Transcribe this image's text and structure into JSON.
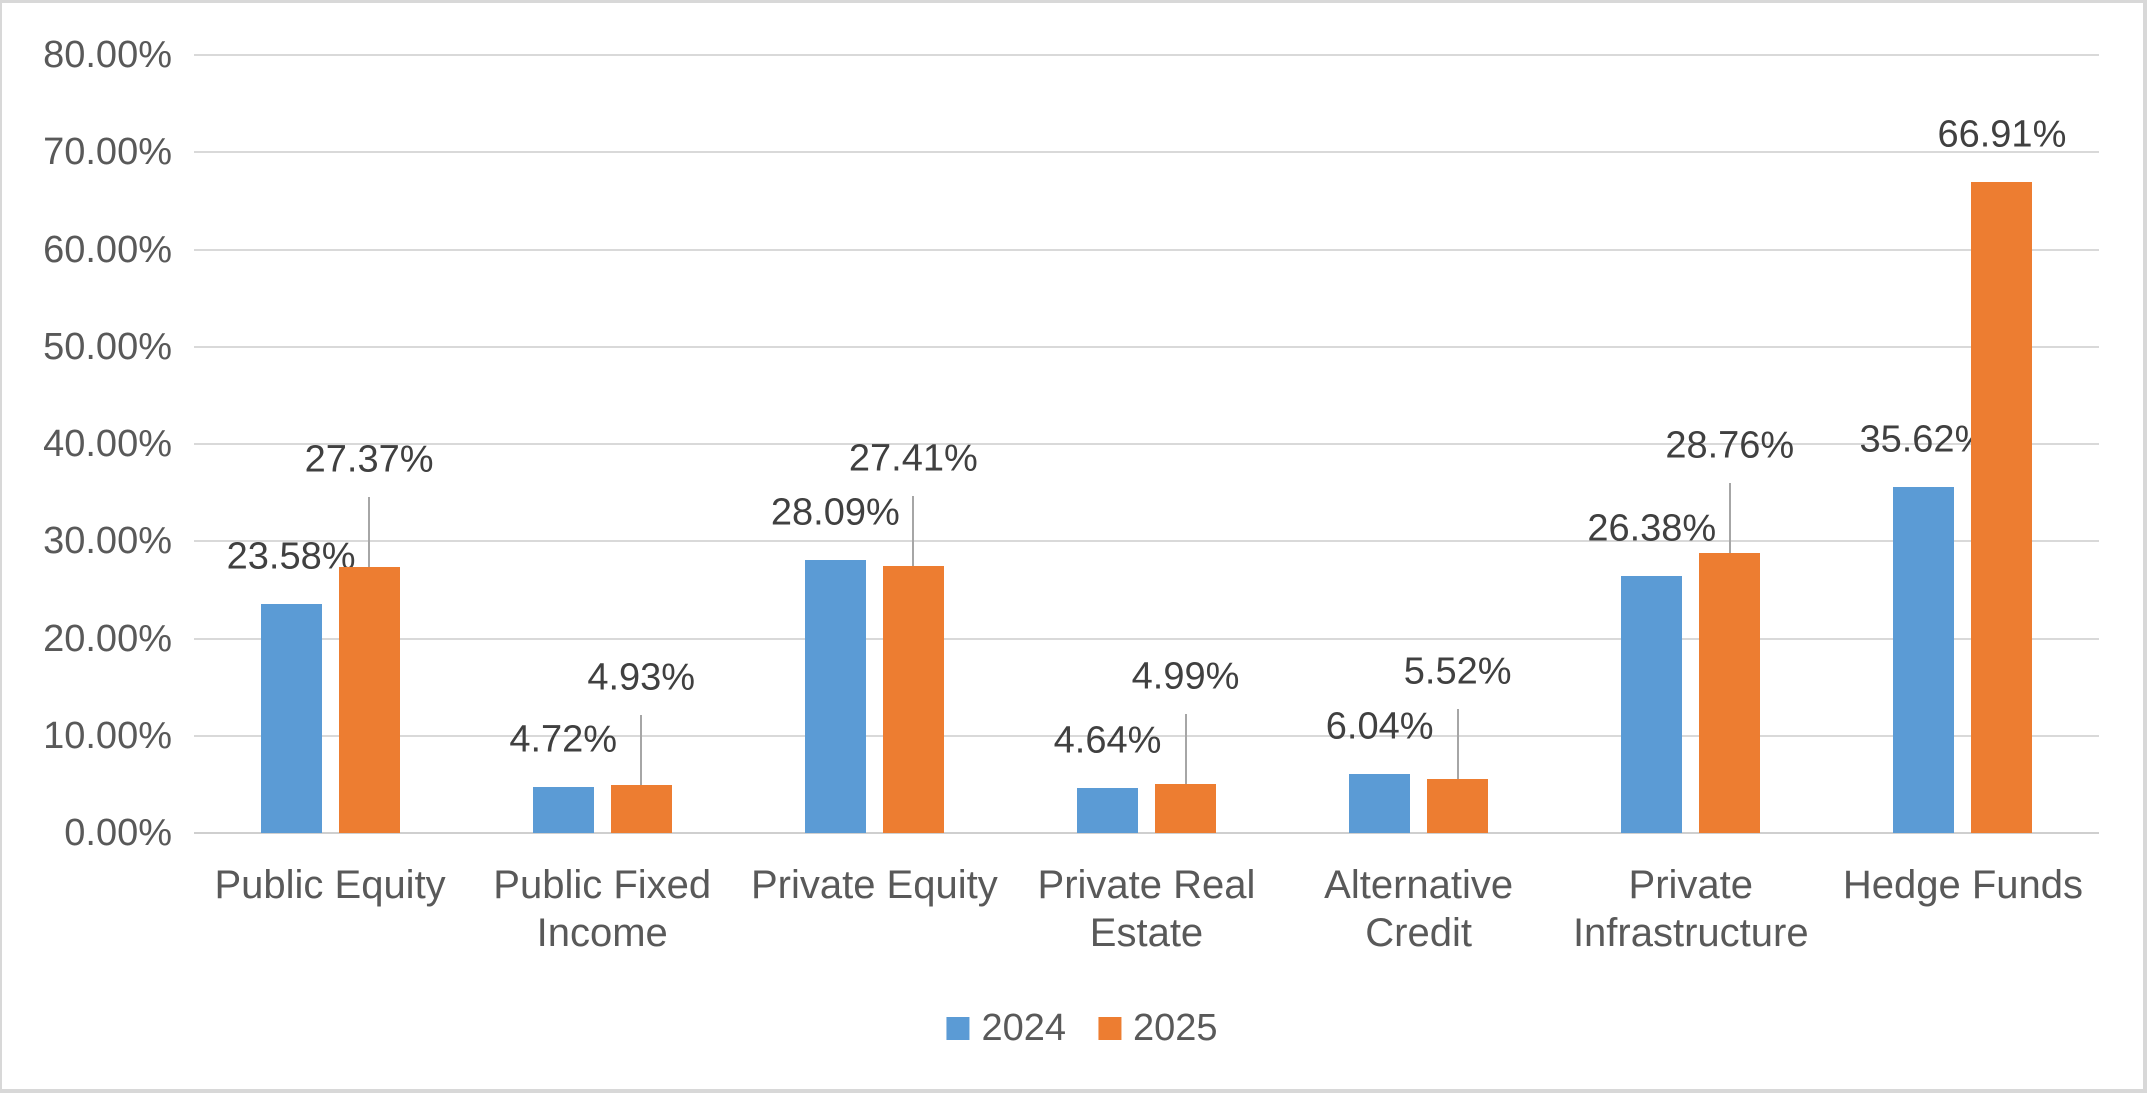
{
  "chart_data": {
    "type": "bar",
    "title": "",
    "categories": [
      "Public Equity",
      "Public Fixed Income",
      "Private Equity",
      "Private Real Estate",
      "Alternative Credit",
      "Private Infrastructure",
      "Hedge Funds"
    ],
    "category_lines": [
      [
        "Public Equity"
      ],
      [
        "Public Fixed",
        "Income"
      ],
      [
        "Private Equity"
      ],
      [
        "Private Real",
        "Estate"
      ],
      [
        "Alternative",
        "Credit"
      ],
      [
        "Private",
        "Infrastructure"
      ],
      [
        "Hedge Funds"
      ]
    ],
    "series": [
      {
        "name": "2024",
        "color": "#5B9BD5",
        "values": [
          23.58,
          4.72,
          28.09,
          4.64,
          6.04,
          26.38,
          35.62
        ],
        "labels": [
          "23.58%",
          "4.72%",
          "28.09%",
          "4.64%",
          "6.04%",
          "26.38%",
          "35.62%"
        ],
        "raised": [
          false,
          false,
          false,
          false,
          false,
          false,
          false
        ]
      },
      {
        "name": "2025",
        "color": "#ED7D31",
        "values": [
          27.37,
          4.93,
          27.41,
          4.99,
          5.52,
          28.76,
          66.91
        ],
        "labels": [
          "27.37%",
          "4.93%",
          "27.41%",
          "4.99%",
          "5.52%",
          "28.76%",
          "66.91%"
        ],
        "raised": [
          true,
          true,
          true,
          true,
          true,
          true,
          false
        ]
      }
    ],
    "y_ticks": [
      "0.00%",
      "10.00%",
      "20.00%",
      "30.00%",
      "40.00%",
      "50.00%",
      "60.00%",
      "70.00%",
      "80.00%"
    ],
    "ylim": [
      0,
      80
    ],
    "xlabel": "",
    "ylabel": "",
    "grid": true,
    "legend_position": "bottom",
    "legend": [
      "2024",
      "2025"
    ]
  },
  "colors": {
    "gridline": "#D9D9D9",
    "axis_line": "#CFCFCF",
    "axis_text": "#595959",
    "data_label_text": "#404040",
    "leader_line": "#A6A6A6",
    "chart_border": "#D8D8D8",
    "background": "#FFFFFF"
  }
}
